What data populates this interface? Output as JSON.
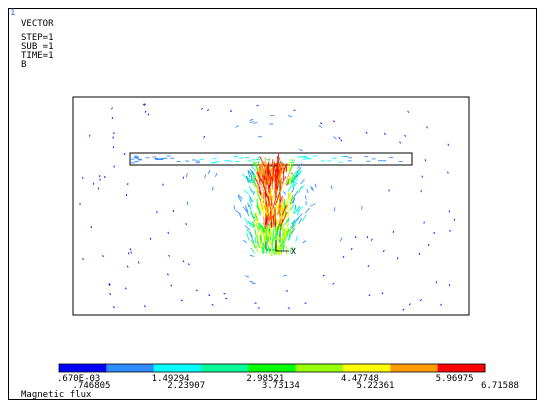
{
  "window_number": "1",
  "header": {
    "plot_type": "VECTOR",
    "step": "STEP=1",
    "substep": "SUB =1",
    "time": "TIME=1",
    "item": "B"
  },
  "axis_triad": {
    "label": "X"
  },
  "colorbar": {
    "colors": [
      "#0000ff",
      "#2f8cff",
      "#00ffff",
      "#00ff9a",
      "#00ff00",
      "#9aff00",
      "#ffff00",
      "#ff9a00",
      "#ff0000"
    ],
    "labels_top": [
      ".670E-03",
      "1.49294",
      "2.98521",
      "4.47748",
      "5.96975"
    ],
    "labels_bottom": [
      ".746805",
      "2.23907",
      "3.73134",
      "5.22361",
      "6.71588"
    ]
  },
  "quantity_label": "Magnetic flux"
}
